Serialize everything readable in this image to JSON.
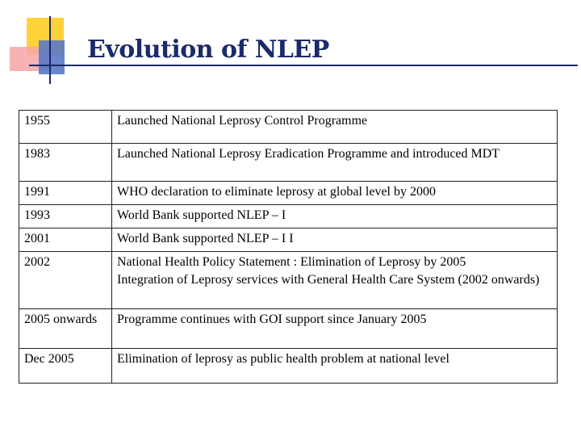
{
  "slide": {
    "title": "Evolution of NLEP"
  },
  "timeline": {
    "rows": [
      {
        "year": "1955",
        "events": [
          "Launched National Leprosy Control  Programme"
        ]
      },
      {
        "year": "1983",
        "events": [
          "Launched National Leprosy Eradication Programme and introduced MDT"
        ]
      },
      {
        "year": "1991",
        "events": [
          "WHO declaration to  eliminate leprosy at global level by 2000"
        ]
      },
      {
        "year": "1993",
        "events": [
          "World   Bank  supported   NLEP – I"
        ]
      },
      {
        "year": "2001",
        "events": [
          "World   Bank  supported   NLEP – I I"
        ]
      },
      {
        "year": "2002",
        "events": [
          "National Health Policy Statement : Elimination of Leprosy by 2005",
          "Integration of Leprosy services with General Health Care System (2002 onwards)"
        ]
      },
      {
        "year": "2005 onwards",
        "events": [
          "Programme continues with GOI support since January 2005"
        ]
      },
      {
        "year": "Dec 2005",
        "events": [
          "Elimination of leprosy as public health problem at national level"
        ]
      }
    ]
  },
  "colors": {
    "title": "#1a2a6a",
    "deco_yellow": "#ffd23a",
    "deco_red": "#f6a6a6",
    "deco_blue": "#5a78c8"
  }
}
